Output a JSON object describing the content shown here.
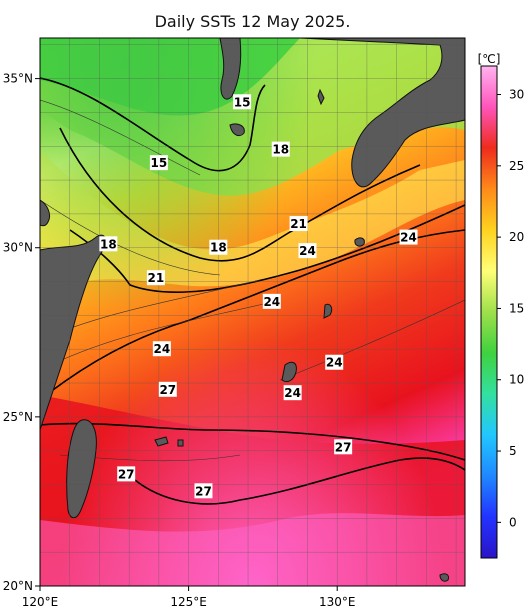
{
  "title": "Daily SSTs 12 May 2025.",
  "map": {
    "lon_range": [
      120,
      134.3
    ],
    "lat_range": [
      20,
      36.2
    ],
    "lon_ticks": [
      120,
      125,
      130
    ],
    "lon_tick_labels": [
      "120°E",
      "125°E",
      "130°E"
    ],
    "lat_ticks": [
      20,
      25,
      30,
      35
    ],
    "lat_tick_labels": [
      "20°N",
      "25°N",
      "30°N",
      "35°N"
    ],
    "grid": true
  },
  "contour_labels": [
    {
      "text": "15",
      "lon": 126.8,
      "lat": 34.3
    },
    {
      "text": "15",
      "lon": 124.0,
      "lat": 32.5
    },
    {
      "text": "18",
      "lon": 128.1,
      "lat": 32.9
    },
    {
      "text": "18",
      "lon": 122.3,
      "lat": 30.1
    },
    {
      "text": "18",
      "lon": 126.0,
      "lat": 30.0
    },
    {
      "text": "21",
      "lon": 128.7,
      "lat": 30.7
    },
    {
      "text": "21",
      "lon": 123.9,
      "lat": 29.1
    },
    {
      "text": "24",
      "lon": 129.0,
      "lat": 29.9
    },
    {
      "text": "24",
      "lon": 132.4,
      "lat": 30.3
    },
    {
      "text": "24",
      "lon": 127.8,
      "lat": 28.4
    },
    {
      "text": "24",
      "lon": 124.1,
      "lat": 27.0
    },
    {
      "text": "24",
      "lon": 129.9,
      "lat": 26.6
    },
    {
      "text": "24",
      "lon": 128.5,
      "lat": 25.7
    },
    {
      "text": "27",
      "lon": 124.3,
      "lat": 25.8
    },
    {
      "text": "27",
      "lon": 130.2,
      "lat": 24.1
    },
    {
      "text": "27",
      "lon": 122.9,
      "lat": 23.3
    },
    {
      "text": "27",
      "lon": 125.5,
      "lat": 22.8
    }
  ],
  "colorbar": {
    "unit": "[℃]",
    "min": -2.5,
    "max": 32,
    "ticks": [
      0,
      5,
      10,
      15,
      20,
      25,
      30
    ],
    "stops": [
      "#2a14c8",
      "#2233ff",
      "#1f88ff",
      "#22c7ff",
      "#33e0a0",
      "#3fd23f",
      "#9ee04a",
      "#ffff77",
      "#ffd21f",
      "#ff8a1a",
      "#ee2c1c",
      "#ff55bb",
      "#ffb3f0"
    ]
  },
  "colors": {
    "land": "#5a5a5a",
    "coast": "#111111",
    "contour": "#000000",
    "grid": "#555555"
  }
}
